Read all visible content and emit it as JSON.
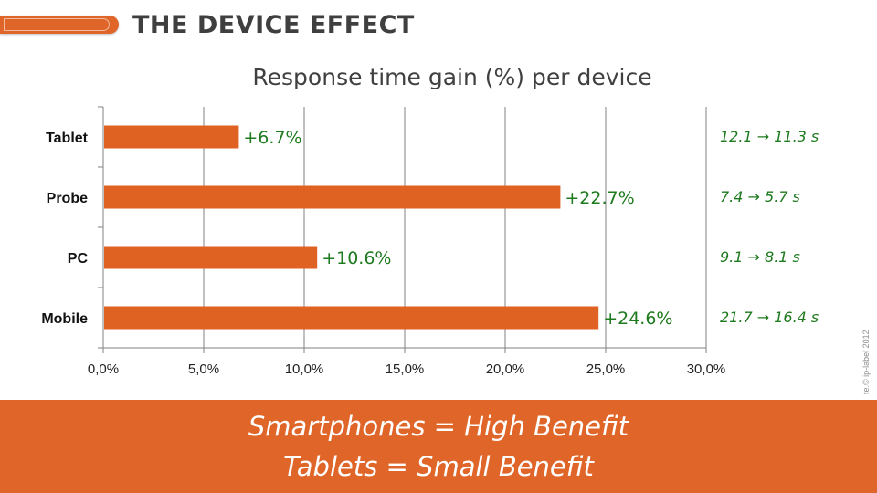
{
  "slide": {
    "title": "THE DEVICE EFFECT",
    "copyright": "te.© ip-label 2012",
    "conclusion": {
      "line1": "Smartphones = High Benefit",
      "line2": "Tablets = Small Benefit"
    }
  },
  "colors": {
    "accent": "#e06528",
    "bar": "#df6223",
    "gain_label": "#1e7a1e",
    "title": "#3f3f3f",
    "grid": "#808080"
  },
  "chart_data": {
    "type": "bar",
    "orientation": "horizontal",
    "title": "Response time gain (%) per device",
    "categories": [
      "Tablet",
      "Probe",
      "PC",
      "Mobile"
    ],
    "values": [
      6.7,
      22.7,
      10.6,
      24.6
    ],
    "data_labels": [
      "+6.7%",
      "+22.7%",
      "+10.6%",
      "+24.6%"
    ],
    "annotations": [
      "12.1 → 11.3 s",
      "7.4 → 5.7 s",
      "9.1 → 8.1 s",
      "21.7 → 16.4 s"
    ],
    "xlim": [
      0,
      30
    ],
    "xticks": [
      0,
      5,
      10,
      15,
      20,
      25,
      30
    ],
    "xtick_labels": [
      "0,0%",
      "5,0%",
      "10,0%",
      "15,0%",
      "20,0%",
      "25,0%",
      "30,0%"
    ],
    "grid": "vertical",
    "legend": "none"
  }
}
